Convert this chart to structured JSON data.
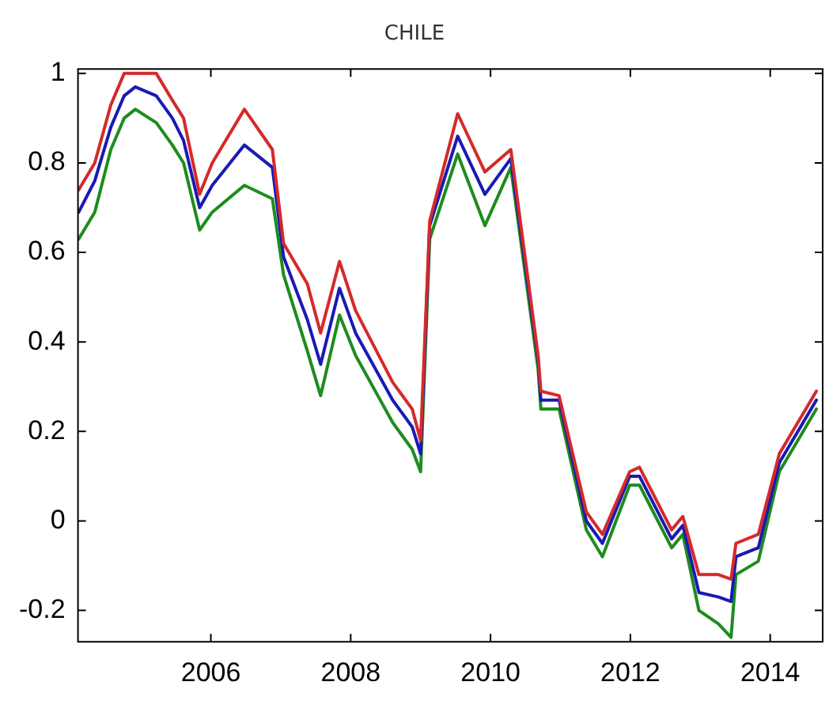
{
  "chart_data": {
    "type": "line",
    "title": "CHILE",
    "x": [
      2004.11,
      2004.34,
      2004.57,
      2004.76,
      2004.92,
      2005.22,
      2005.45,
      2005.61,
      2005.84,
      2006.02,
      2006.48,
      2006.88,
      2007.04,
      2007.38,
      2007.57,
      2007.84,
      2008.07,
      2008.6,
      2008.88,
      2009.0,
      2009.13,
      2009.53,
      2009.92,
      2010.29,
      2010.68,
      2010.72,
      2010.98,
      2011.37,
      2011.6,
      2011.99,
      2012.13,
      2012.59,
      2012.75,
      2012.98,
      2013.26,
      2013.44,
      2013.51,
      2013.83,
      2014.13,
      2014.66
    ],
    "series": [
      {
        "color": "#d42a2a",
        "values": [
          0.74,
          0.8,
          0.93,
          1.0,
          1.0,
          1.0,
          0.94,
          0.9,
          0.73,
          0.8,
          0.92,
          0.83,
          0.62,
          0.53,
          0.42,
          0.58,
          0.47,
          0.31,
          0.25,
          0.18,
          0.67,
          0.91,
          0.78,
          0.83,
          0.37,
          0.29,
          0.28,
          0.02,
          -0.03,
          0.11,
          0.12,
          -0.02,
          0.01,
          -0.12,
          -0.12,
          -0.13,
          -0.05,
          -0.03,
          0.15,
          0.29
        ]
      },
      {
        "color": "#1a1ab4",
        "values": [
          0.69,
          0.76,
          0.88,
          0.95,
          0.97,
          0.95,
          0.9,
          0.85,
          0.7,
          0.75,
          0.84,
          0.79,
          0.59,
          0.45,
          0.35,
          0.52,
          0.42,
          0.27,
          0.21,
          0.15,
          0.66,
          0.86,
          0.73,
          0.81,
          0.36,
          0.27,
          0.27,
          0.0,
          -0.05,
          0.1,
          0.1,
          -0.04,
          -0.01,
          -0.16,
          -0.17,
          -0.18,
          -0.08,
          -0.06,
          0.13,
          0.27
        ]
      },
      {
        "color": "#1e8c1e",
        "values": [
          0.63,
          0.69,
          0.83,
          0.9,
          0.92,
          0.89,
          0.84,
          0.8,
          0.65,
          0.69,
          0.75,
          0.72,
          0.55,
          0.38,
          0.28,
          0.46,
          0.37,
          0.22,
          0.16,
          0.11,
          0.63,
          0.82,
          0.66,
          0.79,
          0.34,
          0.25,
          0.25,
          -0.02,
          -0.08,
          0.08,
          0.08,
          -0.06,
          -0.03,
          -0.2,
          -0.23,
          -0.26,
          -0.12,
          -0.09,
          0.11,
          0.25
        ]
      }
    ],
    "xlim": [
      2004.1,
      2014.75
    ],
    "xticks": [
      2006,
      2008,
      2010,
      2012,
      2014
    ],
    "ylim": [
      -0.27,
      1.01
    ],
    "yticks": [
      -0.2,
      0,
      0.2,
      0.4,
      0.6,
      0.8,
      1
    ],
    "grid": false,
    "legend": false,
    "marker": "none",
    "line_style": "solid"
  }
}
